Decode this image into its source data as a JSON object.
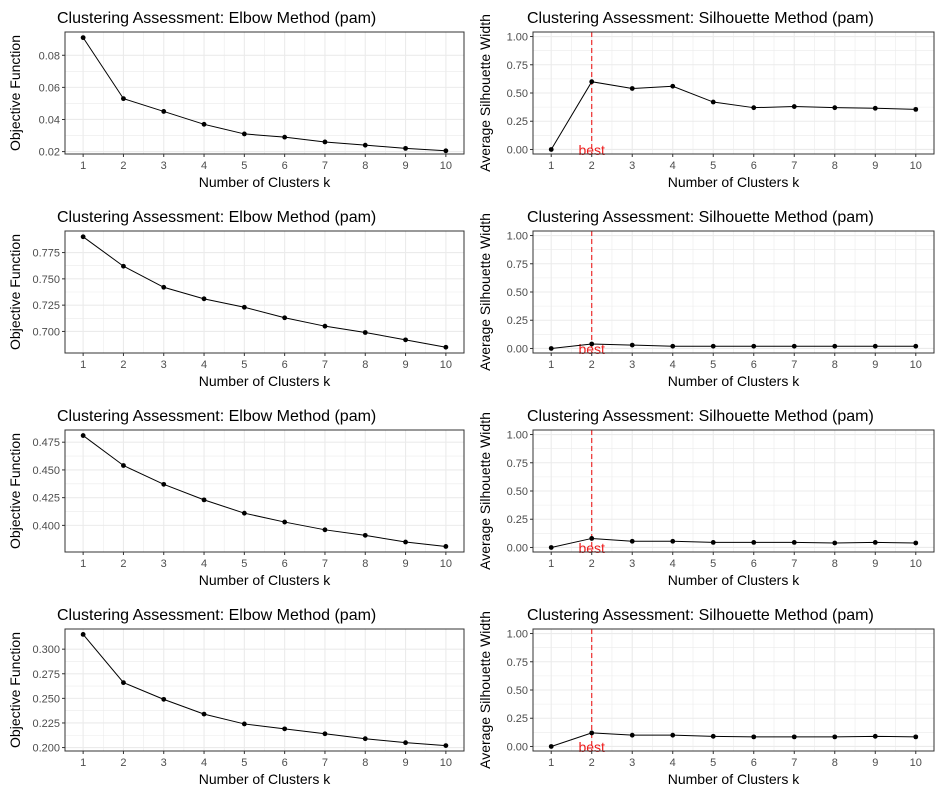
{
  "chart_data": [
    {
      "type": "line",
      "title": "Clustering Assessment: Elbow Method (pam)",
      "xlabel": "Number of Clusters k",
      "ylabel": "Objective Function",
      "x": [
        1,
        2,
        3,
        4,
        5,
        6,
        7,
        8,
        9,
        10
      ],
      "values": [
        0.091,
        0.053,
        0.045,
        0.037,
        0.031,
        0.029,
        0.026,
        0.024,
        0.022,
        0.0205
      ],
      "ylim": [
        0.0185,
        0.0945
      ],
      "yticks": [
        0.02,
        0.04,
        0.06,
        0.08
      ],
      "ytick_labels": [
        "0.02",
        "0.04",
        "0.06",
        "0.08"
      ],
      "grid": true,
      "colors": {
        "line": "#000000",
        "panel_border": "#333333",
        "grid": "#ebebeb"
      }
    },
    {
      "type": "line",
      "title": "Clustering Assessment: Silhouette Method (pam)",
      "xlabel": "Number of Clusters k",
      "ylabel": "Average Silhouette Width",
      "x": [
        1,
        2,
        3,
        4,
        5,
        6,
        7,
        8,
        9,
        10
      ],
      "values": [
        0.0,
        0.6,
        0.54,
        0.56,
        0.42,
        0.37,
        0.38,
        0.37,
        0.365,
        0.355
      ],
      "ylim": [
        -0.04,
        1.04
      ],
      "yticks": [
        0.0,
        0.25,
        0.5,
        0.75,
        1.0
      ],
      "ytick_labels": [
        "0.00",
        "0.25",
        "0.50",
        "0.75",
        "1.00"
      ],
      "best_k": 2,
      "best_label": "best",
      "grid": true,
      "colors": {
        "line": "#000000",
        "best": "#ee1c1c",
        "panel_border": "#333333",
        "grid": "#ebebeb"
      }
    },
    {
      "type": "line",
      "title": "Clustering Assessment: Elbow Method (pam)",
      "xlabel": "Number of Clusters k",
      "ylabel": "Objective Function",
      "x": [
        1,
        2,
        3,
        4,
        5,
        6,
        7,
        8,
        9,
        10
      ],
      "values": [
        0.79,
        0.762,
        0.742,
        0.731,
        0.723,
        0.713,
        0.705,
        0.699,
        0.692,
        0.685
      ],
      "ylim": [
        0.6795,
        0.7955
      ],
      "yticks": [
        0.7,
        0.725,
        0.75,
        0.775
      ],
      "ytick_labels": [
        "0.700",
        "0.725",
        "0.750",
        "0.775"
      ],
      "grid": true,
      "colors": {
        "line": "#000000",
        "panel_border": "#333333",
        "grid": "#ebebeb"
      }
    },
    {
      "type": "line",
      "title": "Clustering Assessment: Silhouette Method (pam)",
      "xlabel": "Number of Clusters k",
      "ylabel": "Average Silhouette Width",
      "x": [
        1,
        2,
        3,
        4,
        5,
        6,
        7,
        8,
        9,
        10
      ],
      "values": [
        0.0,
        0.04,
        0.03,
        0.02,
        0.02,
        0.02,
        0.02,
        0.02,
        0.02,
        0.02
      ],
      "ylim": [
        -0.04,
        1.04
      ],
      "yticks": [
        0.0,
        0.25,
        0.5,
        0.75,
        1.0
      ],
      "ytick_labels": [
        "0.00",
        "0.25",
        "0.50",
        "0.75",
        "1.00"
      ],
      "best_k": 2,
      "best_label": "best",
      "grid": true,
      "colors": {
        "line": "#000000",
        "best": "#ee1c1c",
        "panel_border": "#333333",
        "grid": "#ebebeb"
      }
    },
    {
      "type": "line",
      "title": "Clustering Assessment: Elbow Method (pam)",
      "xlabel": "Number of Clusters k",
      "ylabel": "Objective Function",
      "x": [
        1,
        2,
        3,
        4,
        5,
        6,
        7,
        8,
        9,
        10
      ],
      "values": [
        0.481,
        0.454,
        0.437,
        0.423,
        0.411,
        0.403,
        0.396,
        0.391,
        0.385,
        0.381
      ],
      "ylim": [
        0.376,
        0.486
      ],
      "yticks": [
        0.4,
        0.425,
        0.45,
        0.475
      ],
      "ytick_labels": [
        "0.400",
        "0.425",
        "0.450",
        "0.475"
      ],
      "grid": true,
      "colors": {
        "line": "#000000",
        "panel_border": "#333333",
        "grid": "#ebebeb"
      }
    },
    {
      "type": "line",
      "title": "Clustering Assessment: Silhouette Method (pam)",
      "xlabel": "Number of Clusters k",
      "ylabel": "Average Silhouette Width",
      "x": [
        1,
        2,
        3,
        4,
        5,
        6,
        7,
        8,
        9,
        10
      ],
      "values": [
        0.0,
        0.08,
        0.055,
        0.055,
        0.045,
        0.045,
        0.045,
        0.04,
        0.045,
        0.04
      ],
      "ylim": [
        -0.04,
        1.04
      ],
      "yticks": [
        0.0,
        0.25,
        0.5,
        0.75,
        1.0
      ],
      "ytick_labels": [
        "0.00",
        "0.25",
        "0.50",
        "0.75",
        "1.00"
      ],
      "best_k": 2,
      "best_label": "best",
      "grid": true,
      "colors": {
        "line": "#000000",
        "best": "#ee1c1c",
        "panel_border": "#333333",
        "grid": "#ebebeb"
      }
    },
    {
      "type": "line",
      "title": "Clustering Assessment: Elbow Method (pam)",
      "xlabel": "Number of Clusters k",
      "ylabel": "Objective Function",
      "x": [
        1,
        2,
        3,
        4,
        5,
        6,
        7,
        8,
        9,
        10
      ],
      "values": [
        0.315,
        0.266,
        0.249,
        0.234,
        0.224,
        0.219,
        0.214,
        0.209,
        0.205,
        0.202
      ],
      "ylim": [
        0.1965,
        0.3205
      ],
      "yticks": [
        0.2,
        0.225,
        0.25,
        0.275,
        0.3
      ],
      "ytick_labels": [
        "0.200",
        "0.225",
        "0.250",
        "0.275",
        "0.300"
      ],
      "grid": true,
      "colors": {
        "line": "#000000",
        "panel_border": "#333333",
        "grid": "#ebebeb"
      }
    },
    {
      "type": "line",
      "title": "Clustering Assessment: Silhouette Method (pam)",
      "xlabel": "Number of Clusters k",
      "ylabel": "Average Silhouette Width",
      "x": [
        1,
        2,
        3,
        4,
        5,
        6,
        7,
        8,
        9,
        10
      ],
      "values": [
        0.0,
        0.12,
        0.1,
        0.1,
        0.09,
        0.085,
        0.085,
        0.085,
        0.09,
        0.085
      ],
      "ylim": [
        -0.04,
        1.04
      ],
      "yticks": [
        0.0,
        0.25,
        0.5,
        0.75,
        1.0
      ],
      "ytick_labels": [
        "0.00",
        "0.25",
        "0.50",
        "0.75",
        "1.00"
      ],
      "best_k": 2,
      "best_label": "best",
      "grid": true,
      "colors": {
        "line": "#000000",
        "best": "#ee1c1c",
        "panel_border": "#333333",
        "grid": "#ebebeb"
      }
    }
  ]
}
